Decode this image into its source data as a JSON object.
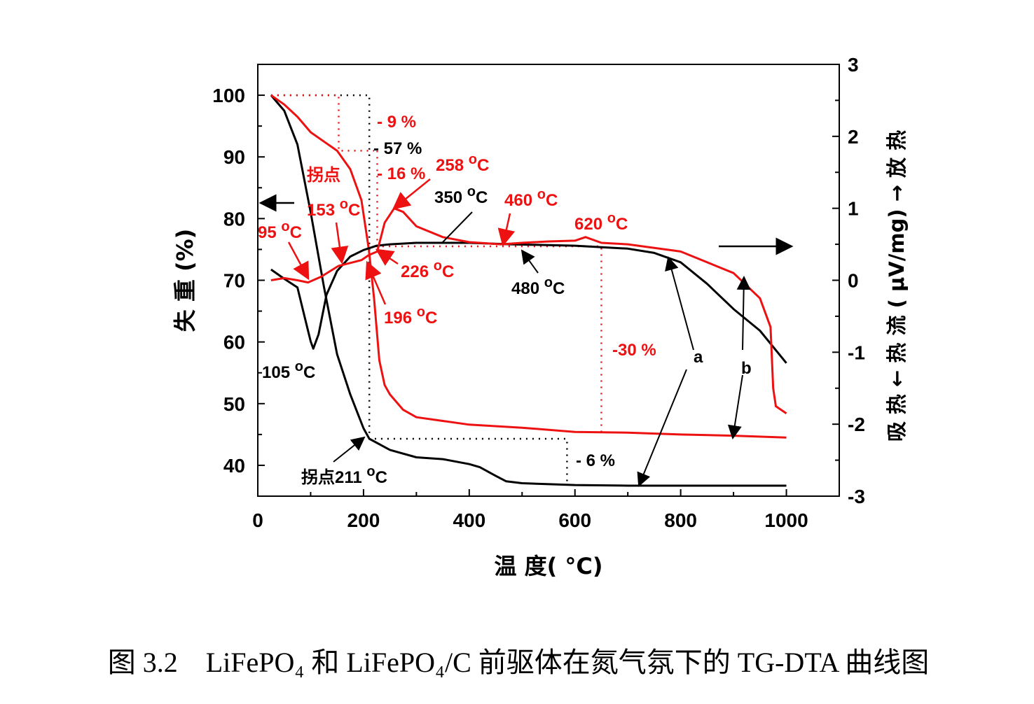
{
  "chart_data": {
    "type": "line",
    "caption": "图 3.2　LiFePO₄ 和 LiFePO₄/C 前驱体在氮气氛下的 TG-DTA 曲线图",
    "xlabel": "温  度(  °C)",
    "ylabel_left": "失  重  (%)",
    "ylabel_right": "吸 热 ← 热 流 ( μV/mg) → 放 热",
    "xlim": [
      0,
      1100
    ],
    "ylim_left": [
      35,
      105
    ],
    "ylim_right": [
      -3,
      3
    ],
    "x_ticks": [
      "0",
      "200",
      "400",
      "600",
      "800",
      "1000"
    ],
    "y_left_ticks": [
      "40",
      "50",
      "60",
      "70",
      "80",
      "90",
      "100"
    ],
    "y_right_ticks": [
      "-3",
      "-2",
      "-1",
      "0",
      "1",
      "2",
      "3"
    ],
    "series": [
      {
        "name": "a",
        "color": "#000000",
        "kind": "TG",
        "axis": "left",
        "x": [
          25,
          50,
          75,
          100,
          125,
          150,
          175,
          200,
          211,
          250,
          300,
          350,
          400,
          420,
          450,
          470,
          500,
          600,
          700,
          800,
          900,
          1000
        ],
        "y": [
          100,
          97.5,
          92,
          81,
          69,
          58,
          51.5,
          46,
          44.3,
          42.5,
          41.3,
          41,
          40.2,
          39.7,
          38.3,
          37.4,
          37.1,
          36.8,
          36.7,
          36.7,
          36.7,
          36.7
        ]
      },
      {
        "name": "b",
        "color": "#ee1111",
        "kind": "TG",
        "axis": "left",
        "x": [
          25,
          50,
          75,
          100,
          125,
          150,
          175,
          196,
          210,
          220,
          230,
          240,
          250,
          275,
          300,
          400,
          500,
          600,
          700,
          800,
          900,
          1000
        ],
        "y": [
          100,
          98.5,
          96.5,
          94,
          92.5,
          91,
          88,
          83,
          75,
          67,
          57,
          53,
          51.5,
          49,
          47.8,
          46.6,
          46.1,
          45.4,
          45.3,
          45,
          44.8,
          44.5
        ]
      },
      {
        "name": "a",
        "color": "#000000",
        "kind": "DTA",
        "axis": "right",
        "x": [
          25,
          50,
          75,
          90,
          100,
          105,
          115,
          130,
          150,
          175,
          200,
          225,
          250,
          300,
          350,
          400,
          480,
          600,
          700,
          750,
          800,
          850,
          900,
          950,
          1000
        ],
        "y": [
          0.15,
          0.02,
          -0.1,
          -0.55,
          -0.85,
          -0.95,
          -0.75,
          -0.2,
          0.13,
          0.33,
          0.42,
          0.48,
          0.5,
          0.52,
          0.52,
          0.52,
          0.5,
          0.48,
          0.44,
          0.38,
          0.25,
          -0.05,
          -0.4,
          -0.7,
          -1.15
        ]
      },
      {
        "name": "b",
        "color": "#ee1111",
        "kind": "DTA",
        "axis": "right",
        "x": [
          25,
          50,
          75,
          95,
          120,
          153,
          180,
          196,
          210,
          226,
          240,
          258,
          275,
          300,
          350,
          400,
          460,
          500,
          550,
          600,
          620,
          650,
          700,
          800,
          900,
          950,
          970,
          975,
          980,
          1000
        ],
        "y": [
          0.0,
          0.03,
          0.0,
          -0.03,
          0.05,
          0.2,
          0.25,
          0.28,
          0.35,
          0.4,
          0.8,
          1.0,
          0.95,
          0.75,
          0.6,
          0.53,
          0.5,
          0.52,
          0.54,
          0.55,
          0.6,
          0.52,
          0.5,
          0.4,
          0.1,
          -0.25,
          -0.65,
          -1.5,
          -1.75,
          -1.85
        ]
      }
    ],
    "annotations": {
      "red": [
        "- 9 %",
        "- 16 %",
        "258 °C",
        "拐点",
        "153 °C",
        "95 °C",
        "460 °C",
        "620 °C",
        "226 °C",
        "196 °C",
        "-30 %"
      ],
      "black": [
        "- 57 %",
        "350 °C",
        "480 °C",
        "105 °C",
        "拐点211 °C",
        "- 6 %",
        "a",
        "b"
      ]
    }
  }
}
